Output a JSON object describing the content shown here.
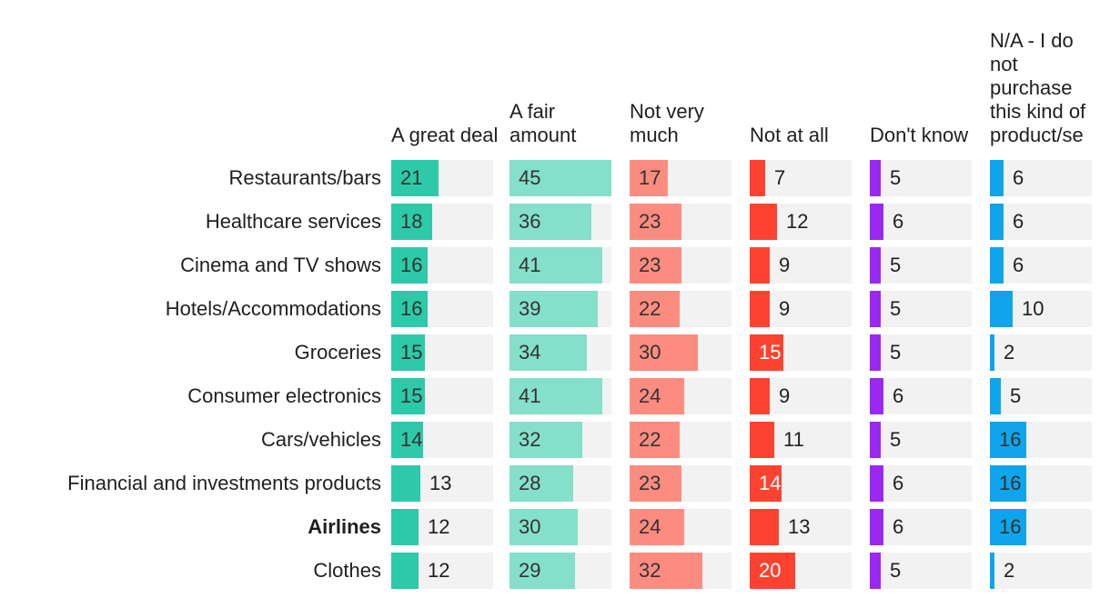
{
  "chart_data": {
    "type": "bar",
    "title": "",
    "xlabel": "",
    "ylabel": "",
    "xlim": [
      0,
      45
    ],
    "categories": [
      "Restaurants/bars",
      "Healthcare services",
      "Cinema and TV shows",
      "Hotels/Accommodations",
      "Groceries",
      "Consumer electronics",
      "Cars/vehicles",
      "Financial and investments products",
      "Airlines",
      "Clothes"
    ],
    "highlight": "Airlines",
    "series": [
      {
        "name": "A great deal",
        "color": "#2dc9a8",
        "values": [
          21,
          18,
          16,
          16,
          15,
          15,
          14,
          13,
          12,
          12
        ]
      },
      {
        "name": "A fair amount",
        "color": "#84dfcb",
        "values": [
          45,
          36,
          41,
          39,
          34,
          41,
          32,
          28,
          30,
          29
        ]
      },
      {
        "name": "Not very much",
        "color": "#fd8c80",
        "values": [
          17,
          23,
          23,
          22,
          30,
          24,
          22,
          23,
          24,
          32
        ]
      },
      {
        "name": "Not at all",
        "color": "#fd4330",
        "values": [
          7,
          12,
          9,
          9,
          15,
          9,
          11,
          14,
          13,
          20
        ]
      },
      {
        "name": "Don't know",
        "color": "#9d27f2",
        "values": [
          5,
          6,
          5,
          5,
          5,
          6,
          5,
          6,
          6,
          5
        ]
      },
      {
        "name": "N/A - I do not purchase this kind of product/se",
        "color": "#0ea5ec",
        "values": [
          6,
          6,
          6,
          10,
          2,
          5,
          16,
          16,
          16,
          2
        ]
      }
    ]
  }
}
